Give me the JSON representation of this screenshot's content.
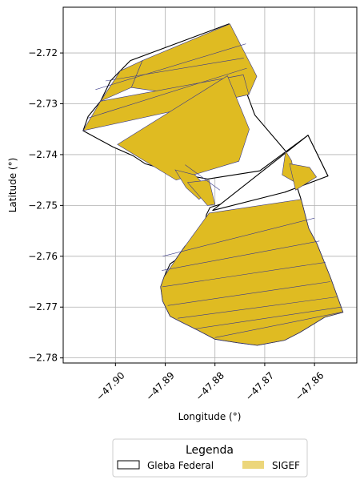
{
  "chart_data": {
    "type": "map",
    "xlabel": "Longitude (°)",
    "ylabel": "Latitude (°)",
    "xlim": [
      -47.9105,
      -47.8515
    ],
    "ylim": [
      -2.781,
      -2.711
    ],
    "x_ticks": [
      -47.9,
      -47.89,
      -47.88,
      -47.87,
      -47.86
    ],
    "x_tick_labels": [
      "−47.90",
      "−47.89",
      "−47.88",
      "−47.87",
      "−47.86"
    ],
    "y_ticks": [
      -2.72,
      -2.73,
      -2.74,
      -2.75,
      -2.76,
      -2.77,
      -2.78
    ],
    "y_tick_labels": [
      "−2.72",
      "−2.73",
      "−2.74",
      "−2.75",
      "−2.76",
      "−2.77",
      "−2.78"
    ],
    "grid": true,
    "legend": {
      "title": "Legenda",
      "placement": "bottom-center",
      "entries": [
        {
          "label": "Gleba Federal",
          "style": "outline"
        },
        {
          "label": "SIGEF",
          "style": "fill"
        }
      ]
    },
    "colors": {
      "sigef_fill": "#dfbb22",
      "sigef_edge": "#3a3a8a",
      "gleba_edge": "#000000",
      "grid": "#b0b0b0"
    },
    "gleba_federal": [
      [
        [
          -47.9065,
          -2.7353
        ],
        [
          -47.9005,
          -2.7385
        ],
        [
          -47.8965,
          -2.7402
        ],
        [
          -47.894,
          -2.7418
        ],
        [
          -47.887,
          -2.7438
        ],
        [
          -47.8815,
          -2.7448
        ],
        [
          -47.871,
          -2.7432
        ],
        [
          -47.8613,
          -2.7362
        ],
        [
          -47.8573,
          -2.7442
        ],
        [
          -47.866,
          -2.7474
        ],
        [
          -47.87,
          -2.7477
        ],
        [
          -47.871,
          -2.7478
        ],
        [
          -47.878,
          -2.7495
        ],
        [
          -47.881,
          -2.7504
        ],
        [
          -47.8817,
          -2.7518
        ],
        [
          -47.882,
          -2.7532
        ],
        [
          -47.8817,
          -2.7558
        ],
        [
          -47.886,
          -2.758
        ],
        [
          -47.888,
          -2.7608
        ],
        [
          -47.889,
          -2.7615
        ],
        [
          -47.8902,
          -2.764
        ],
        [
          -47.8909,
          -2.766
        ],
        [
          -47.8905,
          -2.7688
        ],
        [
          -47.889,
          -2.7718
        ],
        [
          -47.8866,
          -2.773
        ],
        [
          -47.8835,
          -2.7745
        ],
        [
          -47.88,
          -2.7763
        ],
        [
          -47.8755,
          -2.777
        ],
        [
          -47.8715,
          -2.7775
        ],
        [
          -47.866,
          -2.7765
        ],
        [
          -47.863,
          -2.775
        ],
        [
          -47.858,
          -2.772
        ],
        [
          -47.8543,
          -2.771
        ],
        [
          -47.8568,
          -2.7642
        ],
        [
          -47.8595,
          -2.7576
        ],
        [
          -47.8612,
          -2.7545
        ],
        [
          -47.8627,
          -2.7488
        ],
        [
          -47.8658,
          -2.7393
        ],
        [
          -47.872,
          -2.7322
        ],
        [
          -47.8734,
          -2.7285
        ],
        [
          -47.8747,
          -2.725
        ],
        [
          -47.8755,
          -2.72
        ],
        [
          -47.8772,
          -2.7143
        ],
        [
          -47.897,
          -2.7215
        ],
        [
          -47.899,
          -2.7235
        ],
        [
          -47.901,
          -2.7255
        ],
        [
          -47.903,
          -2.7295
        ],
        [
          -47.9055,
          -2.7325
        ],
        [
          -47.9065,
          -2.7353
        ]
      ],
      [
        [
          -47.8805,
          -2.751
        ],
        [
          -47.8613,
          -2.7362
        ],
        [
          -47.8573,
          -2.7442
        ],
        [
          -47.866,
          -2.7474
        ],
        [
          -47.8805,
          -2.751
        ]
      ]
    ],
    "sigef_parcels": [
      {
        "id": "north-strip-1",
        "coords": [
          [
            -47.8946,
            -2.7215
          ],
          [
            -47.8968,
            -2.7268
          ],
          [
            -47.881,
            -2.729
          ],
          [
            -47.8732,
            -2.7282
          ],
          [
            -47.8716,
            -2.7246
          ],
          [
            -47.877,
            -2.7143
          ],
          [
            -47.8946,
            -2.7215
          ]
        ]
      },
      {
        "id": "north-strip-2",
        "coords": [
          [
            -47.899,
            -2.7235
          ],
          [
            -47.903,
            -2.7295
          ],
          [
            -47.8968,
            -2.7268
          ],
          [
            -47.8946,
            -2.7215
          ],
          [
            -47.899,
            -2.7235
          ]
        ]
      },
      {
        "id": "north-strip-3",
        "coords": [
          [
            -47.9065,
            -2.7353
          ],
          [
            -47.903,
            -2.7295
          ],
          [
            -47.8743,
            -2.7243
          ],
          [
            -47.8732,
            -2.7282
          ],
          [
            -47.9065,
            -2.7353
          ]
        ]
      },
      {
        "id": "north-block-4",
        "coords": [
          [
            -47.8996,
            -2.738
          ],
          [
            -47.8775,
            -2.7245
          ],
          [
            -47.8731,
            -2.735
          ],
          [
            -47.8752,
            -2.7413
          ],
          [
            -47.8878,
            -2.745
          ],
          [
            -47.8996,
            -2.738
          ]
        ]
      },
      {
        "id": "mid-parcel-a",
        "coords": [
          [
            -47.888,
            -2.743
          ],
          [
            -47.884,
            -2.744
          ],
          [
            -47.8812,
            -2.747
          ],
          [
            -47.8832,
            -2.7488
          ],
          [
            -47.8858,
            -2.7465
          ],
          [
            -47.888,
            -2.743
          ]
        ]
      },
      {
        "id": "mid-parcel-b",
        "coords": [
          [
            -47.8855,
            -2.7455
          ],
          [
            -47.8812,
            -2.745
          ],
          [
            -47.88,
            -2.7498
          ],
          [
            -47.8815,
            -2.75
          ],
          [
            -47.8855,
            -2.7455
          ]
        ]
      },
      {
        "id": "east-parcel-a",
        "coords": [
          [
            -47.8665,
            -2.744
          ],
          [
            -47.8638,
            -2.7455
          ],
          [
            -47.8646,
            -2.7412
          ],
          [
            -47.8658,
            -2.7393
          ],
          [
            -47.8665,
            -2.744
          ]
        ]
      },
      {
        "id": "east-parcel-b",
        "coords": [
          [
            -47.8638,
            -2.747
          ],
          [
            -47.8596,
            -2.7444
          ],
          [
            -47.861,
            -2.7425
          ],
          [
            -47.865,
            -2.7418
          ],
          [
            -47.8638,
            -2.747
          ]
        ]
      },
      {
        "id": "south-block",
        "coords": [
          [
            -47.8812,
            -2.7515
          ],
          [
            -47.886,
            -2.758
          ],
          [
            -47.888,
            -2.7608
          ],
          [
            -47.8902,
            -2.764
          ],
          [
            -47.8909,
            -2.766
          ],
          [
            -47.8905,
            -2.7688
          ],
          [
            -47.889,
            -2.7718
          ],
          [
            -47.8866,
            -2.773
          ],
          [
            -47.8835,
            -2.7745
          ],
          [
            -47.88,
            -2.7763
          ],
          [
            -47.8755,
            -2.777
          ],
          [
            -47.8715,
            -2.7775
          ],
          [
            -47.866,
            -2.7765
          ],
          [
            -47.863,
            -2.775
          ],
          [
            -47.858,
            -2.772
          ],
          [
            -47.8543,
            -2.771
          ],
          [
            -47.8568,
            -2.7642
          ],
          [
            -47.8595,
            -2.7576
          ],
          [
            -47.8612,
            -2.7545
          ],
          [
            -47.8627,
            -2.7488
          ],
          [
            -47.8812,
            -2.7515
          ]
        ]
      }
    ],
    "sigef_internal_lines": [
      [
        [
          -47.904,
          -2.7272
        ],
        [
          -47.8738,
          -2.7182
        ]
      ],
      [
        [
          -47.902,
          -2.7255
        ],
        [
          -47.8742,
          -2.721
        ]
      ],
      [
        [
          -47.9055,
          -2.7328
        ],
        [
          -47.8736,
          -2.723
        ]
      ],
      [
        [
          -47.886,
          -2.742
        ],
        [
          -47.879,
          -2.747
        ]
      ],
      [
        [
          -47.8905,
          -2.76
        ],
        [
          -47.86,
          -2.7525
        ]
      ],
      [
        [
          -47.8907,
          -2.7628
        ],
        [
          -47.859,
          -2.757
        ]
      ],
      [
        [
          -47.8906,
          -2.766
        ],
        [
          -47.8578,
          -2.7612
        ]
      ],
      [
        [
          -47.8895,
          -2.7697
        ],
        [
          -47.8568,
          -2.765
        ]
      ],
      [
        [
          -47.8875,
          -2.7722
        ],
        [
          -47.8555,
          -2.768
        ]
      ],
      [
        [
          -47.8842,
          -2.7743
        ],
        [
          -47.8546,
          -2.77
        ]
      ],
      [
        [
          -47.88,
          -2.776
        ],
        [
          -47.8545,
          -2.771
        ]
      ]
    ]
  }
}
